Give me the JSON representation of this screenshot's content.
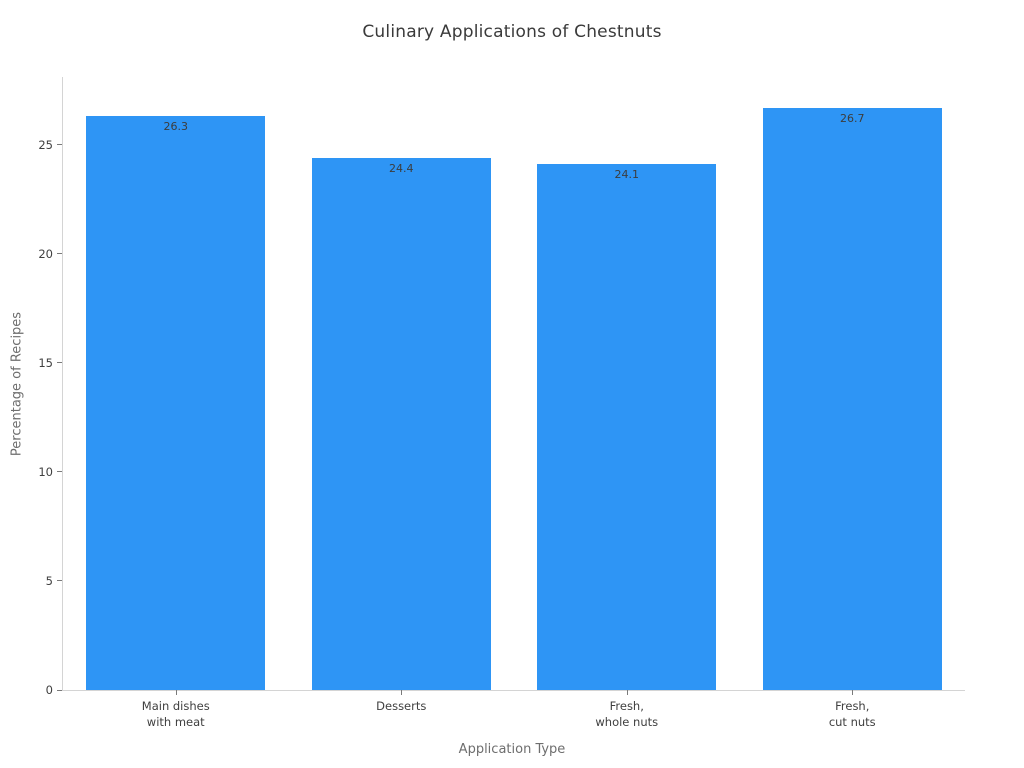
{
  "chart_data": {
    "type": "bar",
    "title": "Culinary Applications of Chestnuts",
    "xlabel": "Application Type",
    "ylabel": "Percentage of Recipes",
    "categories": [
      "Main dishes\nwith meat",
      "Desserts",
      "Fresh,\nwhole nuts",
      "Fresh,\ncut nuts"
    ],
    "values": [
      26.3,
      24.4,
      24.1,
      26.7
    ],
    "value_labels": [
      "26.3",
      "24.4",
      "24.1",
      "26.7"
    ],
    "yticks": [
      0,
      5,
      10,
      15,
      20,
      25
    ],
    "ylim": [
      0,
      28.1
    ],
    "bar_color": "#2E95F5",
    "grid": false,
    "legend": "none"
  }
}
